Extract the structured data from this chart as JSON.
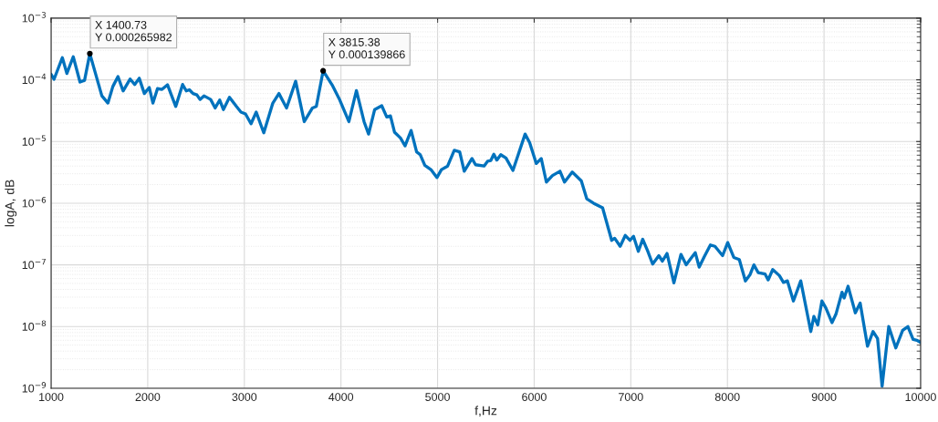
{
  "chart_data": {
    "type": "line",
    "xlabel": "f,Hz",
    "ylabel": "logA, dB",
    "log": "y",
    "grid": true,
    "line_style": "solid",
    "xlim": [
      1000,
      10000
    ],
    "xticks": [
      1000,
      2000,
      3000,
      4000,
      5000,
      6000,
      7000,
      8000,
      9000,
      10000
    ],
    "ylim": [
      1e-09,
      0.001
    ],
    "yticks": [
      {
        "value": 1e-09,
        "label": "10$^{−9}$"
      },
      {
        "value": 1e-08,
        "label": "10$^{−8}$"
      },
      {
        "value": 1e-07,
        "label": "10$^{−7}$"
      },
      {
        "value": 1e-06,
        "label": "10$^{−6}$"
      },
      {
        "value": 1e-05,
        "label": "10$^{−5}$"
      },
      {
        "value": 0.0001,
        "label": "10$^{−4}$"
      },
      {
        "value": 0.001,
        "label": "10$^{−3}$"
      }
    ],
    "annotations": [
      {
        "text": "X 1400.73\nY 0.000265982",
        "x": 1400.73,
        "y": 0.000265982
      },
      {
        "text": "X 3815.38\nY 0.000139866",
        "x": 3815.38,
        "y": 0.000139866
      }
    ],
    "series": [
      {
        "color": "#0072bd",
        "x": [
          1000,
          1030,
          1116,
          1163,
          1229,
          1299,
          1346,
          1400.73,
          1525,
          1588,
          1639,
          1692,
          1745,
          1818,
          1865,
          1912,
          1965,
          2016,
          2054,
          2101,
          2148,
          2205,
          2290,
          2361,
          2399,
          2431,
          2469,
          2509,
          2541,
          2582,
          2651,
          2698,
          2745,
          2783,
          2846,
          2918,
          2965,
          3012,
          3069,
          3123,
          3201,
          3295,
          3358,
          3437,
          3531,
          3620,
          3705,
          3745,
          3815.38,
          3908,
          3988,
          4082,
          4160,
          4239,
          4286,
          4349,
          4422,
          4474,
          4512,
          4554,
          4616,
          4663,
          4726,
          4783,
          4821,
          4868,
          4931,
          4993,
          5040,
          5104,
          5173,
          5229,
          5276,
          5356,
          5393,
          5481,
          5519,
          5550,
          5582,
          5613,
          5654,
          5708,
          5780,
          5906,
          5953,
          6022,
          6073,
          6126,
          6189,
          6267,
          6314,
          6394,
          6488,
          6544,
          6614,
          6708,
          6802,
          6833,
          6890,
          6943,
          6991,
          7028,
          7078,
          7123,
          7173,
          7226,
          7290,
          7327,
          7375,
          7446,
          7519,
          7573,
          7613,
          7667,
          7708,
          7761,
          7824,
          7871,
          7950,
          8003,
          8066,
          8123,
          8186,
          8233,
          8274,
          8318,
          8390,
          8422,
          8469,
          8538,
          8580,
          8621,
          8683,
          8759,
          8863,
          8895,
          8935,
          8978,
          9019,
          9082,
          9123,
          9186,
          9208,
          9249,
          9324,
          9374,
          9450,
          9507,
          9554,
          9601,
          9670,
          9743,
          9814,
          9868,
          9922,
          9962,
          10000
        ],
        "values": [
          0.000123,
          0.000102,
          0.000229,
          0.000127,
          0.000237,
          9.2e-05,
          9.8e-05,
          0.000265982,
          5.5e-05,
          4.2e-05,
          7.8e-05,
          0.000113,
          6.6e-05,
          0.000103,
          8.4e-05,
          0.000106,
          6e-05,
          7.5e-05,
          4.2e-05,
          7.2e-05,
          7e-05,
          8.3e-05,
          3.7e-05,
          8.4e-05,
          6.6e-05,
          6.9e-05,
          6e-05,
          5.7e-05,
          4.8e-05,
          5.5e-05,
          4.8e-05,
          3.5e-05,
          4.7e-05,
          3.3e-05,
          5.2e-05,
          3.7e-05,
          3e-05,
          2.8e-05,
          1.94e-05,
          3e-05,
          1.38e-05,
          4.2e-05,
          6e-05,
          3.5e-05,
          9.5e-05,
          2.1e-05,
          3.5e-05,
          3.7e-05,
          0.000139866,
          8.3e-05,
          4.7e-05,
          2.1e-05,
          6.7e-05,
          2.1e-05,
          1.32e-05,
          3.3e-05,
          3.8e-05,
          2.5e-05,
          2.6e-05,
          1.42e-05,
          1.14e-05,
          8.5e-06,
          1.51e-05,
          6.8e-06,
          6.1e-06,
          4.1e-06,
          3.5e-06,
          2.6e-06,
          3.5e-06,
          4e-06,
          7.2e-06,
          6.8e-06,
          3.3e-06,
          5.3e-06,
          4.2e-06,
          4e-06,
          4.8e-06,
          4.9e-06,
          6.2e-06,
          5e-06,
          6.1e-06,
          5.4e-06,
          3.4e-06,
          1.32e-05,
          9.6e-06,
          4.4e-06,
          5.3e-06,
          2.2e-06,
          2.8e-06,
          3.3e-06,
          2.2e-06,
          3.2e-06,
          2.3e-06,
          1.18e-06,
          1e-06,
          8.4e-07,
          2.5e-07,
          2.7e-07,
          2e-07,
          3e-07,
          2.5e-07,
          2.9e-07,
          1.66e-07,
          2.6e-07,
          1.71e-07,
          1.03e-07,
          1.41e-07,
          1.15e-07,
          1.53e-07,
          5.1e-08,
          1.48e-07,
          1e-07,
          1.22e-07,
          1.58e-07,
          9.2e-08,
          1.36e-07,
          2.1e-07,
          2e-07,
          1.41e-07,
          2.3e-07,
          1.32e-07,
          1.22e-07,
          5.5e-08,
          6.9e-08,
          1e-07,
          7.5e-08,
          7.1e-08,
          5.7e-08,
          8.4e-08,
          6.7e-08,
          5.2e-08,
          5.5e-08,
          2.6e-08,
          5.5e-08,
          8.3e-09,
          1.46e-08,
          1.06e-08,
          2.6e-08,
          2e-08,
          1.16e-08,
          1.58e-08,
          3.6e-08,
          2.9e-08,
          4.5e-08,
          1.67e-08,
          2.4e-08,
          4.8e-09,
          8.3e-09,
          6.4e-09,
          1.08e-09,
          1e-08,
          4.5e-09,
          8.7e-09,
          1e-08,
          6.2e-09,
          6e-09,
          5.5e-09
        ]
      }
    ]
  }
}
